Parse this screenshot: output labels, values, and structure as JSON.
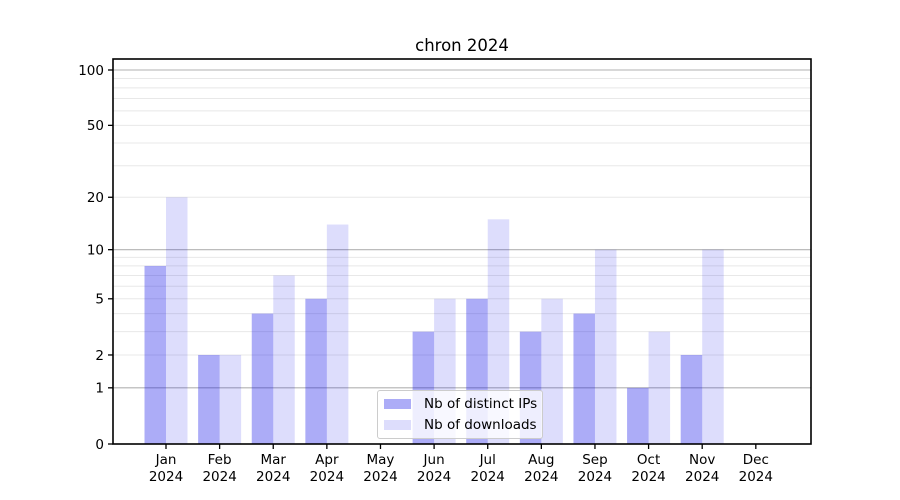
{
  "chart_data": {
    "type": "bar",
    "title": "chron 2024",
    "categories": [
      "Jan",
      "Feb",
      "Mar",
      "Apr",
      "May",
      "Jun",
      "Jul",
      "Aug",
      "Sep",
      "Oct",
      "Nov",
      "Dec"
    ],
    "x_tick_second_line": "2024",
    "series": [
      {
        "name": "Nb of distinct IPs",
        "color": "rgba(16,16,232,0.35)",
        "values": [
          8,
          2,
          4,
          5,
          0,
          3,
          5,
          3,
          4,
          1,
          2,
          0
        ]
      },
      {
        "name": "Nb of downloads",
        "color": "rgba(16,16,232,0.14)",
        "values": [
          20,
          2,
          7,
          14,
          0,
          5,
          15,
          5,
          10,
          3,
          10,
          0
        ]
      }
    ],
    "yscale": "log1p",
    "ylim": [
      0,
      115
    ],
    "y_tick_labels": [
      "0",
      "1",
      "2",
      "5",
      "10",
      "20",
      "50",
      "100"
    ],
    "y_ticks": [
      0,
      1,
      2,
      5,
      10,
      20,
      50,
      100
    ],
    "y_major_gridlines": [
      1,
      10,
      100
    ],
    "y_minor_gridlines": [
      2,
      3,
      4,
      5,
      6,
      7,
      8,
      9,
      20,
      30,
      40,
      50,
      60,
      70,
      80,
      90
    ],
    "grid": true,
    "legend_position": "lower center",
    "colors": {
      "major_grid": "#b2b2b2",
      "minor_grid": "#e8e8e8",
      "axis": "#000000",
      "text": "#000000",
      "legend_border": "#cccccc",
      "legend_bg": "rgba(255,255,255,0.8)"
    }
  }
}
